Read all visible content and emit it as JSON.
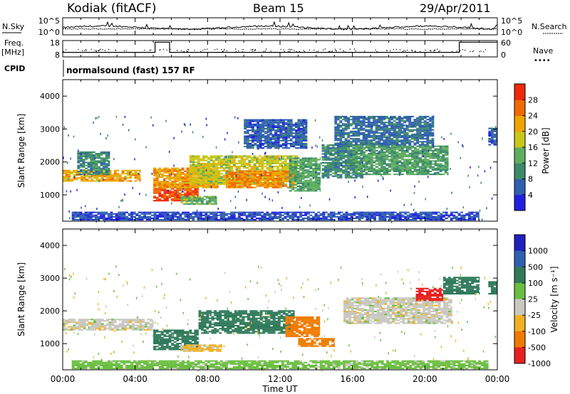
{
  "header": {
    "station": "Kodiak (fitACF)",
    "beam": "Beam 15",
    "date": "29/Apr/2011"
  },
  "left_labels": {
    "nsky": "N.Sky",
    "freq": "Freq.",
    "freq_unit": "[MHz]",
    "cpid": "CPID"
  },
  "right_labels": {
    "nsearch": "N.Search",
    "nave": "Nave"
  },
  "cpid_text": "normalsound (fast) 157 RF",
  "colors": {
    "power": [
      "#2020e0",
      "#2f5fb0",
      "#3c8a6a",
      "#5fae5f",
      "#c8c818",
      "#f0a400",
      "#f06a00",
      "#f0280a"
    ],
    "velocity": [
      "#2020c0",
      "#2f60b0",
      "#2f7a5a",
      "#6abf40",
      "#c8c8c0",
      "#f0b020",
      "#f07a00",
      "#e82020"
    ]
  },
  "chart_data": [
    {
      "type": "line",
      "name": "noise",
      "ylabel": "N.Sky",
      "yticks_left": [
        "10^5",
        "10^0"
      ],
      "y2label": "N.Search",
      "yticks_right": [
        "10^5",
        "10^0"
      ],
      "x_range_hours": [
        0,
        24
      ],
      "description_values": "sky noise and search noise per scan (log scale)"
    },
    {
      "type": "line",
      "name": "frequency",
      "ylabel": "Freq. [MHz]",
      "yticks_left": [
        "18",
        "8"
      ],
      "y2label": "Nave",
      "yticks_right": [
        "60",
        "0"
      ],
      "freq_segments": [
        {
          "x": [
            0,
            5.1
          ],
          "y": 10.8
        },
        {
          "x": [
            5.1,
            5.9
          ],
          "y": 17.0
        },
        {
          "x": [
            5.9,
            21.9
          ],
          "y": 10.8
        },
        {
          "x": [
            21.9,
            24
          ],
          "y": 17.0
        }
      ]
    },
    {
      "type": "heatmap",
      "name": "power",
      "ylabel": "Slant Range [km]",
      "yticks": [
        "1000",
        "2000",
        "3000",
        "4000"
      ],
      "ylim": [
        200,
        4500
      ],
      "colorbar_label": "Power [dB]",
      "colorbar_ticks": [
        "4",
        "8",
        "12",
        "16",
        "20",
        "24",
        "28"
      ],
      "colorbar_range": [
        0,
        32
      ],
      "regions": [
        {
          "t0": 0.0,
          "t1": 4.3,
          "r0": 1400,
          "r1": 1750,
          "value": 22
        },
        {
          "t0": 0.8,
          "t1": 2.6,
          "r0": 1600,
          "r1": 2300,
          "value": 10
        },
        {
          "t0": 5.0,
          "t1": 7.5,
          "r0": 800,
          "r1": 1300,
          "value": 28
        },
        {
          "t0": 5.0,
          "t1": 8.6,
          "r0": 1200,
          "r1": 1800,
          "value": 22
        },
        {
          "t0": 6.5,
          "t1": 8.5,
          "r0": 700,
          "r1": 950,
          "value": 14
        },
        {
          "t0": 7.0,
          "t1": 13.0,
          "r0": 1300,
          "r1": 2200,
          "value": 18
        },
        {
          "t0": 9.0,
          "t1": 12.8,
          "r0": 1200,
          "r1": 1700,
          "value": 24
        },
        {
          "t0": 12.5,
          "t1": 14.2,
          "r0": 1100,
          "r1": 2100,
          "value": 13
        },
        {
          "t0": 14.3,
          "t1": 16.6,
          "r0": 1500,
          "r1": 2500,
          "value": 10
        },
        {
          "t0": 16.0,
          "t1": 21.3,
          "r0": 1600,
          "r1": 2500,
          "value": 12
        },
        {
          "t0": 15.0,
          "t1": 20.5,
          "r0": 2500,
          "r1": 3400,
          "value": 7
        },
        {
          "t0": 10.0,
          "t1": 13.5,
          "r0": 2400,
          "r1": 3300,
          "value": 6
        },
        {
          "t0": 23.5,
          "t1": 24.0,
          "r0": 2500,
          "r1": 3000,
          "value": 6
        },
        {
          "t0": 0.5,
          "t1": 23.0,
          "r0": 220,
          "r1": 450,
          "value": 5
        }
      ]
    },
    {
      "type": "heatmap",
      "name": "velocity",
      "ylabel": "Slant Range [km]",
      "yticks": [
        "1000",
        "2000",
        "3000",
        "4000"
      ],
      "ylim": [
        200,
        4500
      ],
      "colorbar_label": "Velocity [m s^-1]",
      "colorbar_ticks": [
        "1000",
        "500",
        "100",
        "25",
        "-25",
        "-100",
        "-500",
        "-1000"
      ],
      "regions": [
        {
          "t0": 0.0,
          "t1": 5.0,
          "r0": 1400,
          "r1": 1750,
          "value": 0
        },
        {
          "t0": 5.0,
          "t1": 7.5,
          "r0": 800,
          "r1": 1400,
          "value": 150
        },
        {
          "t0": 6.5,
          "t1": 8.8,
          "r0": 750,
          "r1": 950,
          "value": -40
        },
        {
          "t0": 7.5,
          "t1": 12.8,
          "r0": 1300,
          "r1": 2000,
          "value": 250
        },
        {
          "t0": 12.3,
          "t1": 14.2,
          "r0": 1200,
          "r1": 1800,
          "value": -150
        },
        {
          "t0": 13.0,
          "t1": 15.0,
          "r0": 900,
          "r1": 1150,
          "value": -300
        },
        {
          "t0": 15.5,
          "t1": 21.5,
          "r0": 1600,
          "r1": 2400,
          "value": 0
        },
        {
          "t0": 19.5,
          "t1": 21.0,
          "r0": 2300,
          "r1": 2700,
          "value": -700
        },
        {
          "t0": 21.0,
          "t1": 23.0,
          "r0": 2500,
          "r1": 3000,
          "value": 300
        },
        {
          "t0": 23.5,
          "t1": 24.0,
          "r0": 2500,
          "r1": 2900,
          "value": 200
        },
        {
          "t0": 0.5,
          "t1": 23.5,
          "r0": 220,
          "r1": 450,
          "value": 50
        }
      ]
    }
  ],
  "x_axis": {
    "label": "Time UT",
    "ticks": [
      "00:00",
      "04:00",
      "08:00",
      "12:00",
      "16:00",
      "20:00",
      "00:00"
    ],
    "tick_hours": [
      0,
      4,
      8,
      12,
      16,
      20,
      24
    ]
  }
}
